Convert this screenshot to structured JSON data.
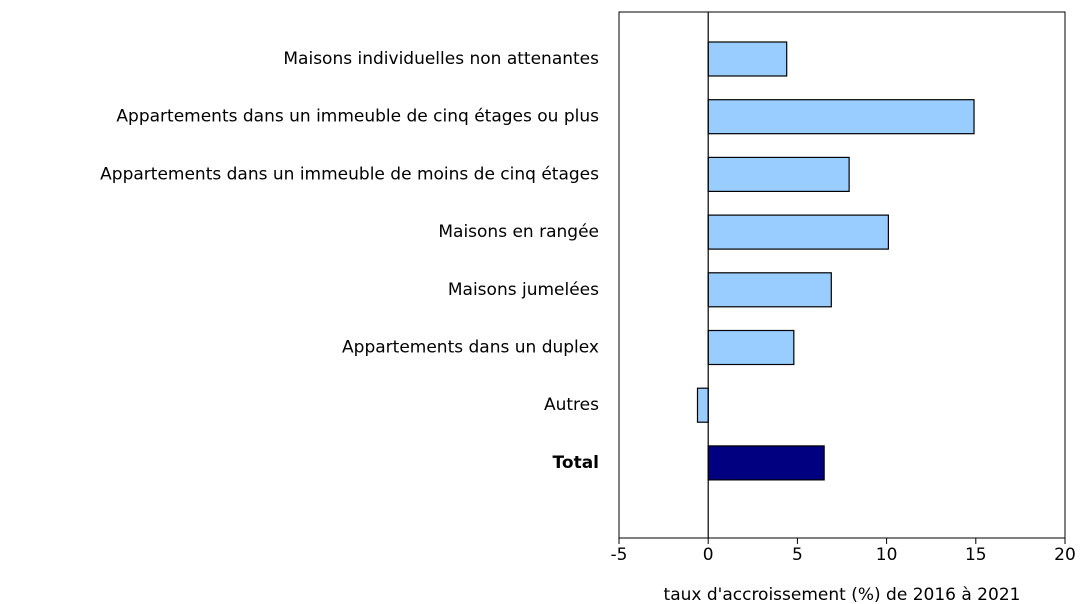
{
  "chart_data": {
    "type": "barh",
    "x_label": "taux d'accroissement (%) de 2016 à 2021",
    "categories": [
      "Maisons individuelles non attenantes",
      "Appartements dans un immeuble de cinq étages ou plus",
      "Appartements dans un immeuble de moins de cinq étages",
      "Maisons en rangée",
      "Maisons jumelées",
      "Appartements dans un duplex",
      "Autres",
      "Total"
    ],
    "values": [
      4.4,
      14.9,
      7.9,
      10.1,
      6.9,
      4.8,
      -0.6,
      6.5
    ],
    "colors": [
      "#99ccff",
      "#99ccff",
      "#99ccff",
      "#99ccff",
      "#99ccff",
      "#99ccff",
      "#99ccff",
      "#000080"
    ],
    "xlim": [
      -5,
      20
    ],
    "xticks": [
      -5,
      0,
      5,
      10,
      15,
      20
    ],
    "grid": false
  }
}
